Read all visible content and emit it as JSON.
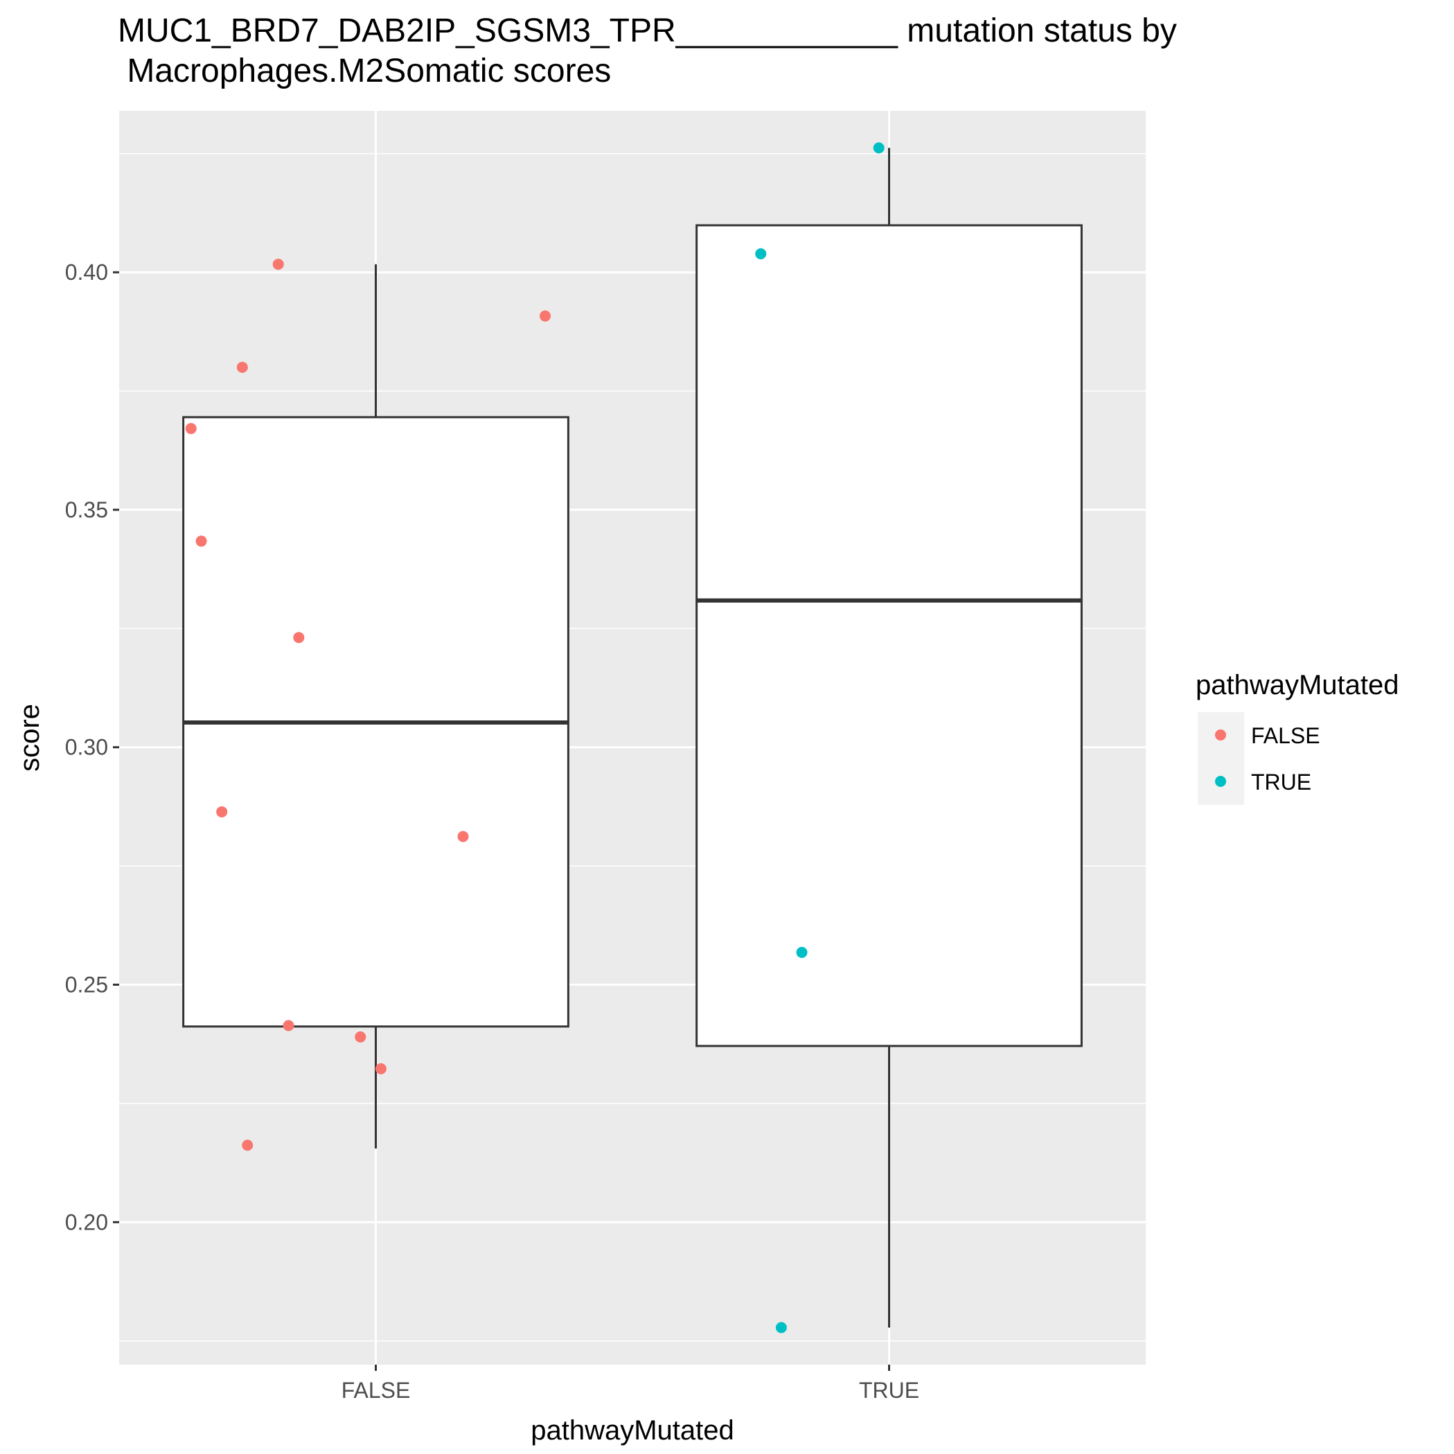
{
  "chart_data": {
    "type": "boxplot",
    "title": "MUC1_BRD7_DAB2IP_SGSM3_TPR____________ mutation status by\n Macrophages.M2Somatic scores",
    "xlabel": "pathwayMutated",
    "ylabel": "score",
    "categories": [
      "FALSE",
      "TRUE"
    ],
    "ylim": [
      0.17,
      0.434
    ],
    "y_ticks": [
      0.2,
      0.25,
      0.3,
      0.35,
      0.4
    ],
    "y_tick_labels": [
      "0.20",
      "0.25",
      "0.30",
      "0.35",
      "0.40"
    ],
    "grid": true,
    "legend": {
      "title": "pathwayMutated",
      "position": "right",
      "entries": [
        {
          "label": "FALSE",
          "color": "#F8766D"
        },
        {
          "label": "TRUE",
          "color": "#00BFC4"
        }
      ]
    },
    "boxes": [
      {
        "category": "FALSE",
        "whisker_low": 0.2155,
        "q1": 0.2412,
        "median": 0.3052,
        "q3": 0.3695,
        "whisker_high": 0.4017,
        "color": "#F8766D"
      },
      {
        "category": "TRUE",
        "whisker_low": 0.1778,
        "q1": 0.2371,
        "median": 0.3309,
        "q3": 0.4099,
        "whisker_high": 0.4262,
        "color": "#00BFC4"
      }
    ],
    "points": [
      {
        "category": "FALSE",
        "jitter": -0.36,
        "y": 0.3671
      },
      {
        "category": "FALSE",
        "jitter": -0.34,
        "y": 0.3434
      },
      {
        "category": "FALSE",
        "jitter": -0.3,
        "y": 0.2864
      },
      {
        "category": "FALSE",
        "jitter": -0.26,
        "y": 0.38
      },
      {
        "category": "FALSE",
        "jitter": -0.25,
        "y": 0.2162
      },
      {
        "category": "FALSE",
        "jitter": -0.19,
        "y": 0.4017
      },
      {
        "category": "FALSE",
        "jitter": -0.17,
        "y": 0.2414
      },
      {
        "category": "FALSE",
        "jitter": -0.15,
        "y": 0.3231
      },
      {
        "category": "FALSE",
        "jitter": -0.03,
        "y": 0.239
      },
      {
        "category": "FALSE",
        "jitter": 0.01,
        "y": 0.2323
      },
      {
        "category": "FALSE",
        "jitter": 0.17,
        "y": 0.2812
      },
      {
        "category": "FALSE",
        "jitter": 0.33,
        "y": 0.3908
      },
      {
        "category": "TRUE",
        "jitter": -0.25,
        "y": 0.4039
      },
      {
        "category": "TRUE",
        "jitter": -0.21,
        "y": 0.1778
      },
      {
        "category": "TRUE",
        "jitter": -0.17,
        "y": 0.2568
      },
      {
        "category": "TRUE",
        "jitter": -0.02,
        "y": 0.4262
      }
    ]
  }
}
